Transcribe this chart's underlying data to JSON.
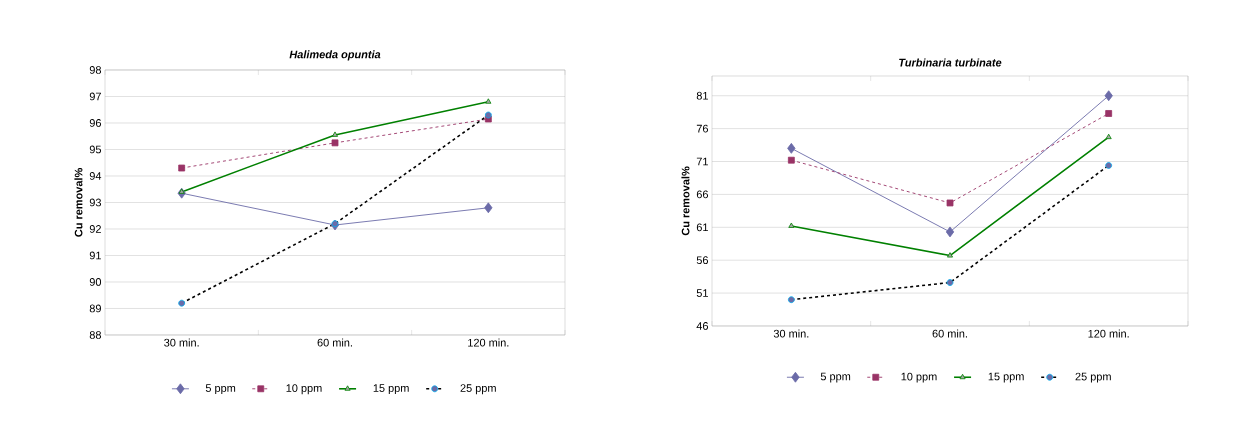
{
  "chart_data": [
    {
      "type": "line",
      "title": "*Halimeda opuntia*",
      "ylabel": "Cu removal%",
      "categories": [
        "30 min.",
        "60 min.",
        "120 min."
      ],
      "ylim": [
        88,
        98
      ],
      "yticks": [
        88,
        89,
        90,
        91,
        92,
        93,
        94,
        95,
        96,
        97,
        98
      ],
      "grid": "y",
      "legend": "bottom",
      "series": [
        {
          "name": "5 ppm",
          "color": "#6b6ba8",
          "values": [
            93.35,
            92.15,
            92.8
          ],
          "marker": "diamond",
          "line_style": "solid"
        },
        {
          "name": "10 ppm",
          "color": "#993366",
          "values": [
            94.3,
            95.25,
            96.15
          ],
          "marker": "square",
          "line_style": "dashed"
        },
        {
          "name": "15 ppm",
          "color": "#008000",
          "values": [
            93.4,
            95.55,
            96.8
          ],
          "marker": "triangle",
          "line_style": "solid"
        },
        {
          "name": "25 ppm",
          "color": "#000000",
          "values": [
            89.2,
            92.2,
            96.3
          ],
          "marker": "circle",
          "line_style": "dashed"
        }
      ]
    },
    {
      "type": "line",
      "title": "*Turbinaria turbinate*",
      "ylabel": "Cu removal%",
      "categories": [
        "30 min.",
        "60 min.",
        "120 min."
      ],
      "ylim": [
        46,
        84
      ],
      "yticks": [
        46,
        51,
        56,
        61,
        66,
        71,
        76,
        81
      ],
      "grid": "y",
      "legend": "bottom",
      "series": [
        {
          "name": "5 ppm",
          "color": "#6b6ba8",
          "values": [
            73.0,
            60.3,
            81.0
          ],
          "marker": "diamond",
          "line_style": "solid"
        },
        {
          "name": "10 ppm",
          "color": "#993366",
          "values": [
            71.2,
            64.7,
            78.3
          ],
          "marker": "square",
          "line_style": "dashed"
        },
        {
          "name": "15 ppm",
          "color": "#008000",
          "values": [
            61.2,
            56.7,
            74.7
          ],
          "marker": "triangle",
          "line_style": "solid"
        },
        {
          "name": "25 ppm",
          "color": "#000000",
          "values": [
            50.0,
            52.6,
            70.4
          ],
          "marker": "circle",
          "line_style": "dashed"
        }
      ]
    }
  ]
}
